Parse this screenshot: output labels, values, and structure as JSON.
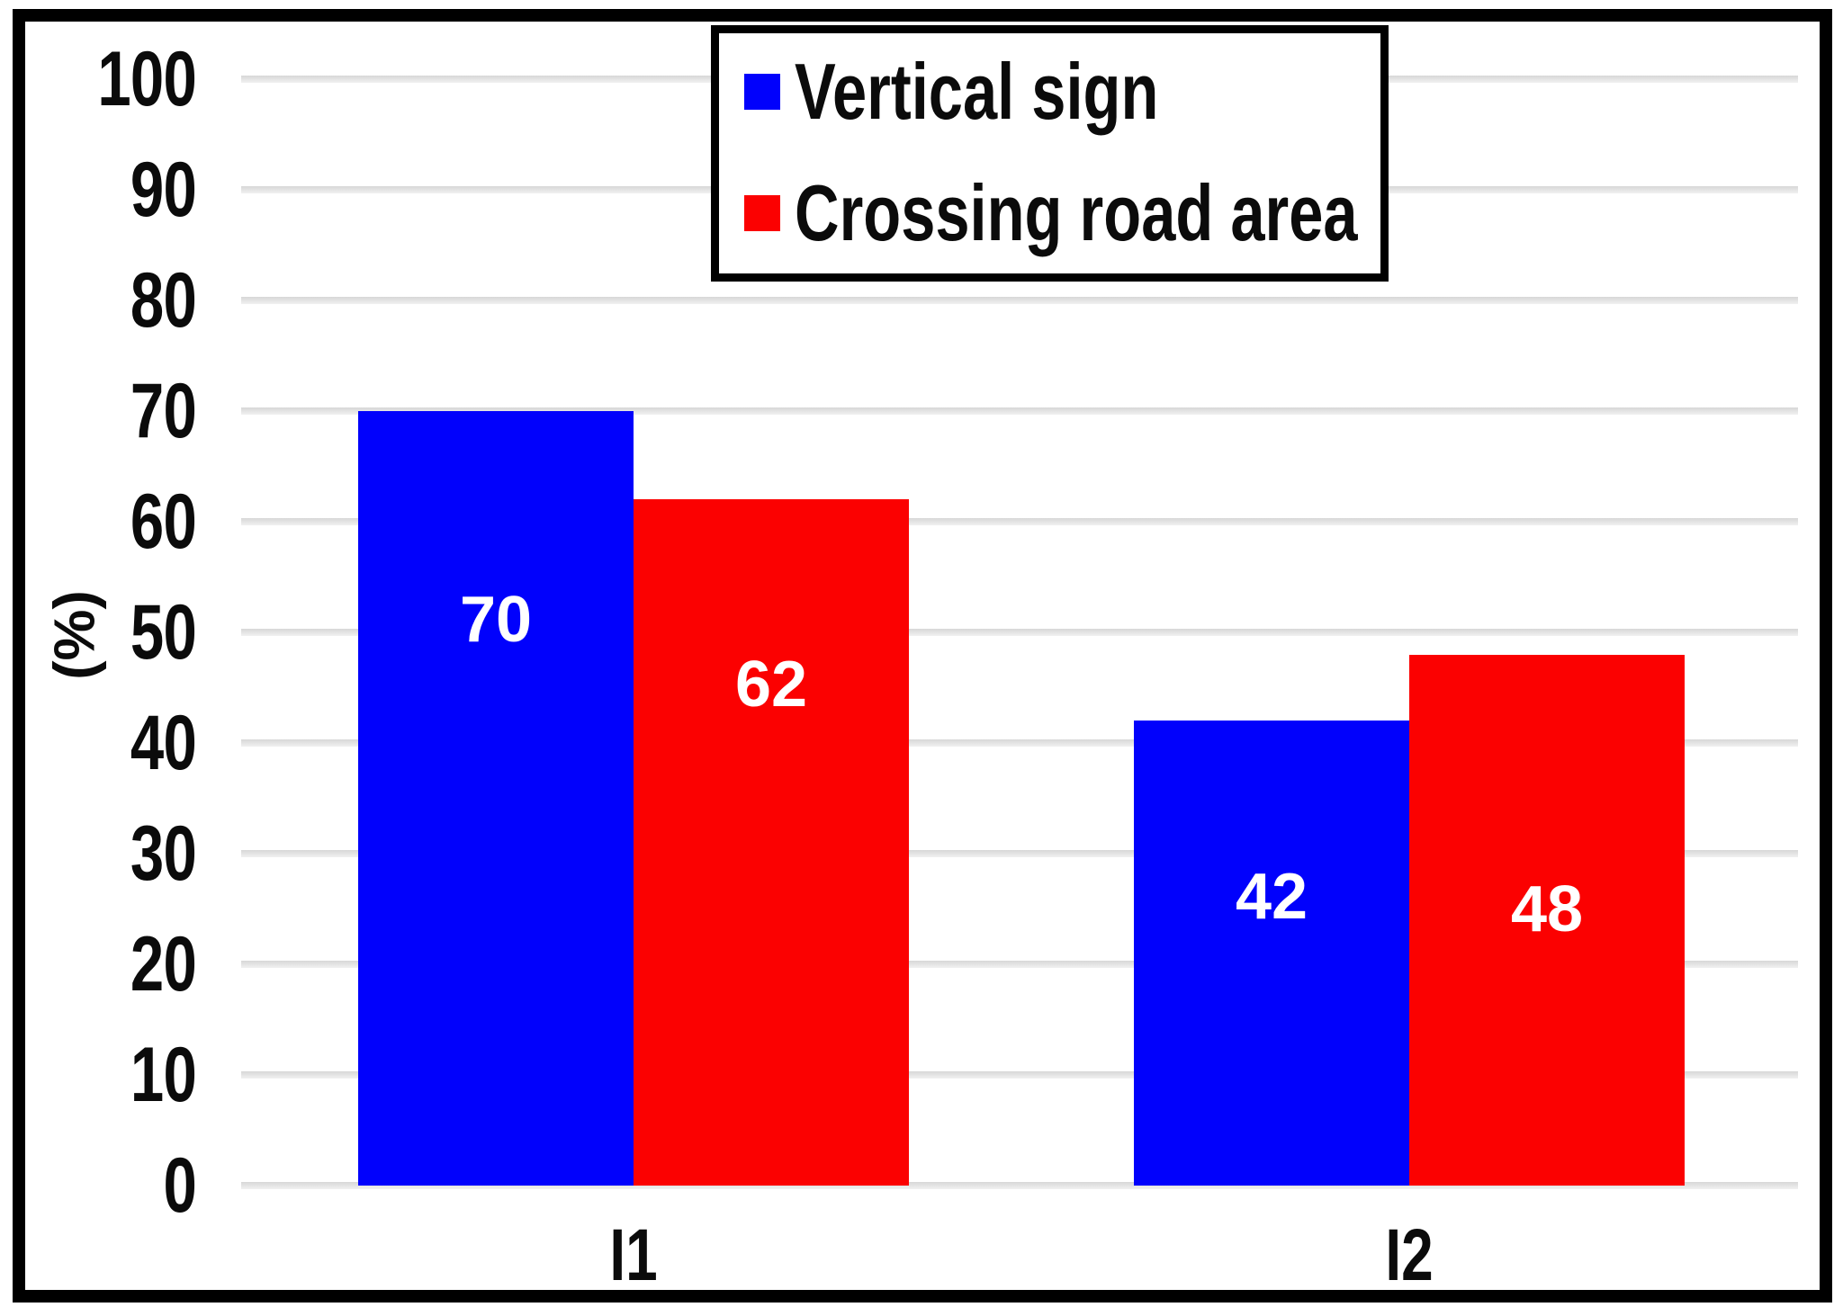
{
  "figure": {
    "description": "Grouped bar chart in a black frame"
  },
  "chart_data": {
    "type": "bar",
    "categories": [
      "I1",
      "I2"
    ],
    "series": [
      {
        "name": "Vertical sign",
        "color": "#0101fc",
        "values": [
          70,
          42
        ]
      },
      {
        "name": "Crossing road area",
        "color": "#fb0101",
        "values": [
          62,
          48
        ]
      }
    ],
    "title": "",
    "xlabel": "",
    "ylabel": "(%)",
    "ylim": [
      0,
      100
    ],
    "ytick_step": 10,
    "yticks": [
      0,
      10,
      20,
      30,
      40,
      50,
      60,
      70,
      80,
      90,
      100
    ],
    "grid": true,
    "gridline_color": "#e2e2e2",
    "legend_position": "top-center",
    "bar_label_color": "#ffffff",
    "label_frac_from_top": [
      [
        0.27,
        0.38
      ],
      [
        0.27,
        0.48
      ]
    ]
  }
}
